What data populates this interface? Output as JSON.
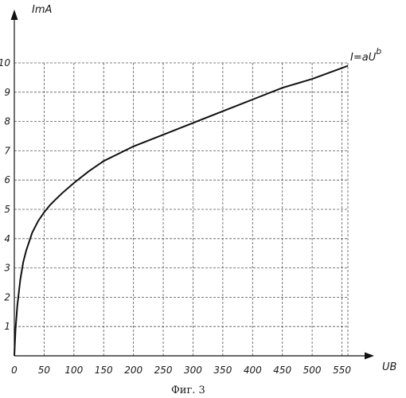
{
  "chart_data": {
    "type": "line",
    "title": "",
    "xlabel": "UB",
    "ylabel": "ImA",
    "xlim": [
      0,
      560
    ],
    "ylim": [
      0,
      10
    ],
    "grid": true,
    "x_ticks": [
      0,
      50,
      100,
      150,
      200,
      250,
      300,
      350,
      400,
      450,
      500,
      550
    ],
    "y_ticks": [
      1,
      2,
      3,
      4,
      5,
      6,
      7,
      8,
      9,
      10
    ],
    "annotation": {
      "prefix": "I=aU",
      "superscript": "b"
    },
    "series": [
      {
        "x": [
          0,
          2,
          5,
          10,
          15,
          20,
          30,
          40,
          50,
          60,
          70,
          80,
          100,
          125,
          150,
          175,
          200,
          250,
          300,
          350,
          400,
          450,
          500,
          560
        ],
        "values": [
          0.0,
          0.9,
          1.7,
          2.6,
          3.2,
          3.6,
          4.2,
          4.6,
          4.9,
          5.15,
          5.35,
          5.55,
          5.9,
          6.3,
          6.65,
          6.9,
          7.15,
          7.55,
          7.95,
          8.35,
          8.75,
          9.15,
          9.45,
          9.9
        ]
      }
    ]
  },
  "caption": "Фиг. 3"
}
